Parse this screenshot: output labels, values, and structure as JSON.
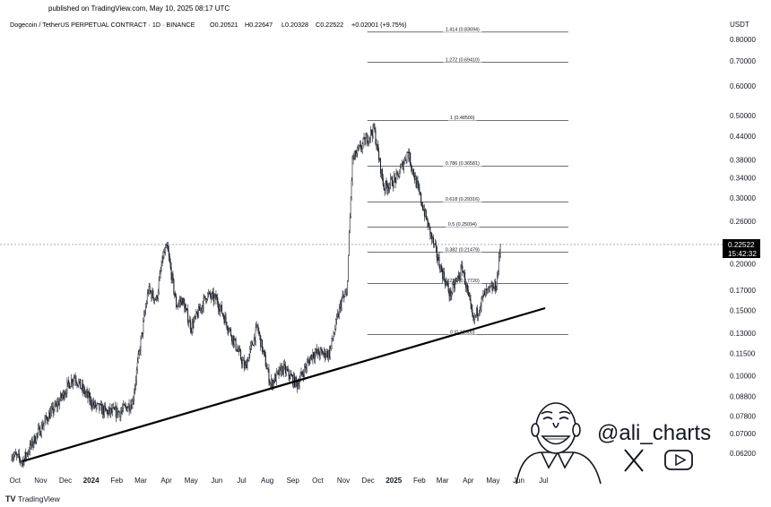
{
  "header": {
    "published": "published on TradingView.com, May 10, 2025 08:17 UTC",
    "symbol": "Dogecoin / TetherUS PERPETUAL CONTRACT · 1D · BINANCE",
    "open": "O0.20521",
    "high": "H0.22647",
    "low": "L0.20328",
    "close": "C0.22522",
    "change": "+0.02001 (+9.75%)"
  },
  "price_label": {
    "value": "0.22522",
    "countdown": "15:42:32"
  },
  "footer": {
    "brand": "TradingView"
  },
  "watermark": {
    "handle": "@ali_charts",
    "icons": [
      "x-logo-icon",
      "youtube-icon"
    ]
  },
  "colors": {
    "candles": "#131722",
    "background": "#ffffff",
    "grid_lines": "#131722",
    "price_line": "#787b86"
  },
  "chart_data": {
    "type": "candlestick",
    "title": "Dogecoin / TetherUS PERPETUAL CONTRACT · 1D · BINANCE",
    "scale": "log",
    "currency": "USDT",
    "ylim": [
      0.057,
      0.87
    ],
    "y_ticks": [
      "0.80000",
      "0.70000",
      "0.60000",
      "0.50000",
      "0.44000",
      "0.38000",
      "0.34000",
      "0.30000",
      "0.26000",
      "0.22522",
      "0.20000",
      "0.17000",
      "0.15000",
      "0.13000",
      "0.11500",
      "0.10000",
      "0.08800",
      "0.07800",
      "0.07000",
      "0.06200"
    ],
    "x_ticks": [
      "Oct",
      "Nov",
      "Dec",
      "2024",
      "Feb",
      "Mar",
      "Apr",
      "May",
      "Jun",
      "Jul",
      "Aug",
      "Sep",
      "Oct",
      "Nov",
      "Dec",
      "2025",
      "Feb",
      "Mar",
      "Apr",
      "May",
      "Jun",
      "Jul"
    ],
    "x_range": [
      "2023-10-01",
      "2025-07-31"
    ],
    "price_path": [
      [
        "2023-09-27",
        0.0618
      ],
      [
        "2023-10-10",
        0.059
      ],
      [
        "2023-10-25",
        0.068
      ],
      [
        "2023-11-10",
        0.078
      ],
      [
        "2023-11-20",
        0.083
      ],
      [
        "2023-12-05",
        0.095
      ],
      [
        "2023-12-12",
        0.1
      ],
      [
        "2023-12-20",
        0.093
      ],
      [
        "2024-01-05",
        0.083
      ],
      [
        "2024-01-20",
        0.08
      ],
      [
        "2024-02-05",
        0.08
      ],
      [
        "2024-02-20",
        0.085
      ],
      [
        "2024-02-28",
        0.115
      ],
      [
        "2024-03-10",
        0.17
      ],
      [
        "2024-03-20",
        0.16
      ],
      [
        "2024-03-28",
        0.21
      ],
      [
        "2024-04-02",
        0.22
      ],
      [
        "2024-04-13",
        0.155
      ],
      [
        "2024-04-20",
        0.16
      ],
      [
        "2024-05-01",
        0.135
      ],
      [
        "2024-05-20",
        0.165
      ],
      [
        "2024-06-01",
        0.16
      ],
      [
        "2024-06-15",
        0.135
      ],
      [
        "2024-07-05",
        0.105
      ],
      [
        "2024-07-20",
        0.135
      ],
      [
        "2024-08-05",
        0.095
      ],
      [
        "2024-08-20",
        0.105
      ],
      [
        "2024-09-06",
        0.095
      ],
      [
        "2024-09-25",
        0.115
      ],
      [
        "2024-10-15",
        0.115
      ],
      [
        "2024-10-30",
        0.16
      ],
      [
        "2024-11-05",
        0.165
      ],
      [
        "2024-11-12",
        0.38
      ],
      [
        "2024-11-25",
        0.42
      ],
      [
        "2024-12-08",
        0.46
      ],
      [
        "2024-12-20",
        0.32
      ],
      [
        "2025-01-05",
        0.34
      ],
      [
        "2025-01-18",
        0.4
      ],
      [
        "2025-01-28",
        0.33
      ],
      [
        "2025-02-10",
        0.26
      ],
      [
        "2025-02-25",
        0.2
      ],
      [
        "2025-03-10",
        0.165
      ],
      [
        "2025-03-25",
        0.195
      ],
      [
        "2025-04-07",
        0.14
      ],
      [
        "2025-04-20",
        0.165
      ],
      [
        "2025-05-05",
        0.175
      ],
      [
        "2025-05-10",
        0.2252
      ]
    ],
    "trendline": {
      "style": "support",
      "points": [
        [
          "2023-10-10",
          0.059
        ],
        [
          "2025-07-03",
          0.152
        ]
      ]
    },
    "fibonacci": {
      "x_range": [
        "2024-11-30",
        "2025-07-31"
      ],
      "levels": [
        {
          "ratio": "1.414",
          "price": 0.83694,
          "label": "1.414 (0.83694)"
        },
        {
          "ratio": "1.272",
          "price": 0.6941,
          "label": "1.272 (0.69410)"
        },
        {
          "ratio": "1",
          "price": 0.485,
          "label": "1 (0.48500)"
        },
        {
          "ratio": "0.786",
          "price": 0.36581,
          "label": "0.786 (0.36581)"
        },
        {
          "ratio": "0.618",
          "price": 0.29316,
          "label": "0.618 (0.29316)"
        },
        {
          "ratio": "0.5",
          "price": 0.25094,
          "label": "0.5 (0.25094)"
        },
        {
          "ratio": "0.382",
          "price": 0.21479,
          "label": "0.382 (0.21479)"
        },
        {
          "ratio": "0.236",
          "price": 0.1772,
          "label": "0.236 (0.17720)"
        },
        {
          "ratio": "0",
          "price": 0.129,
          "label": "0 (0.12900)"
        }
      ]
    },
    "last_price": 0.22522
  }
}
